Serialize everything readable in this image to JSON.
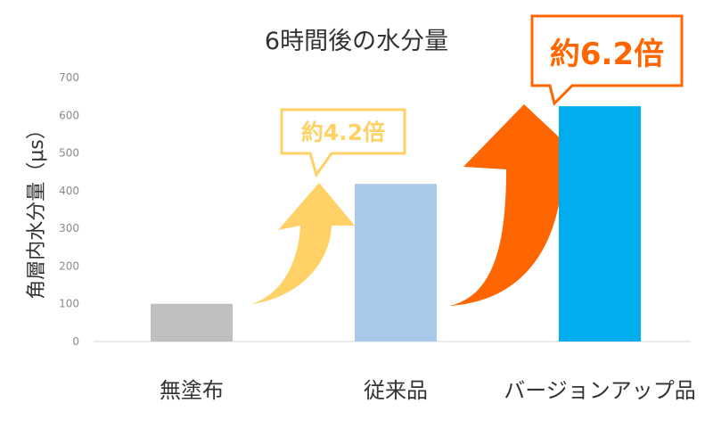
{
  "chart_data": {
    "type": "bar",
    "title": "6時間後の水分量",
    "ylabel": "角層内水分量（μs）",
    "xlabel": "",
    "ylim": [
      0,
      700
    ],
    "yticks": [
      "0",
      "100",
      "200",
      "300",
      "400",
      "500",
      "600",
      "700"
    ],
    "categories": [
      "無塗布",
      "従来品",
      "バージョンアップ品"
    ],
    "values": [
      100,
      418,
      624
    ],
    "grid": false,
    "colors": [
      "#bfbfbf",
      "#a9c9ea",
      "#00aeef"
    ],
    "annotations": [
      {
        "text": "約4.2倍",
        "color": "#ffd166",
        "target_category": "従来品"
      },
      {
        "text": "約6.2倍",
        "color": "#ff6600",
        "target_category": "バージョンアップ品"
      }
    ]
  }
}
